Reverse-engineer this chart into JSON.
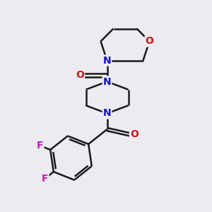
{
  "background_color": "#ebebf0",
  "bond_color": "#1a1a1a",
  "N_color": "#1414cc",
  "O_color": "#cc1414",
  "F_color": "#cc14cc",
  "line_width": 1.8,
  "font_size_atoms": 10,
  "figsize": [
    3.0,
    3.0
  ],
  "dpi": 100,
  "xlim": [
    0,
    10
  ],
  "ylim": [
    0,
    10
  ]
}
